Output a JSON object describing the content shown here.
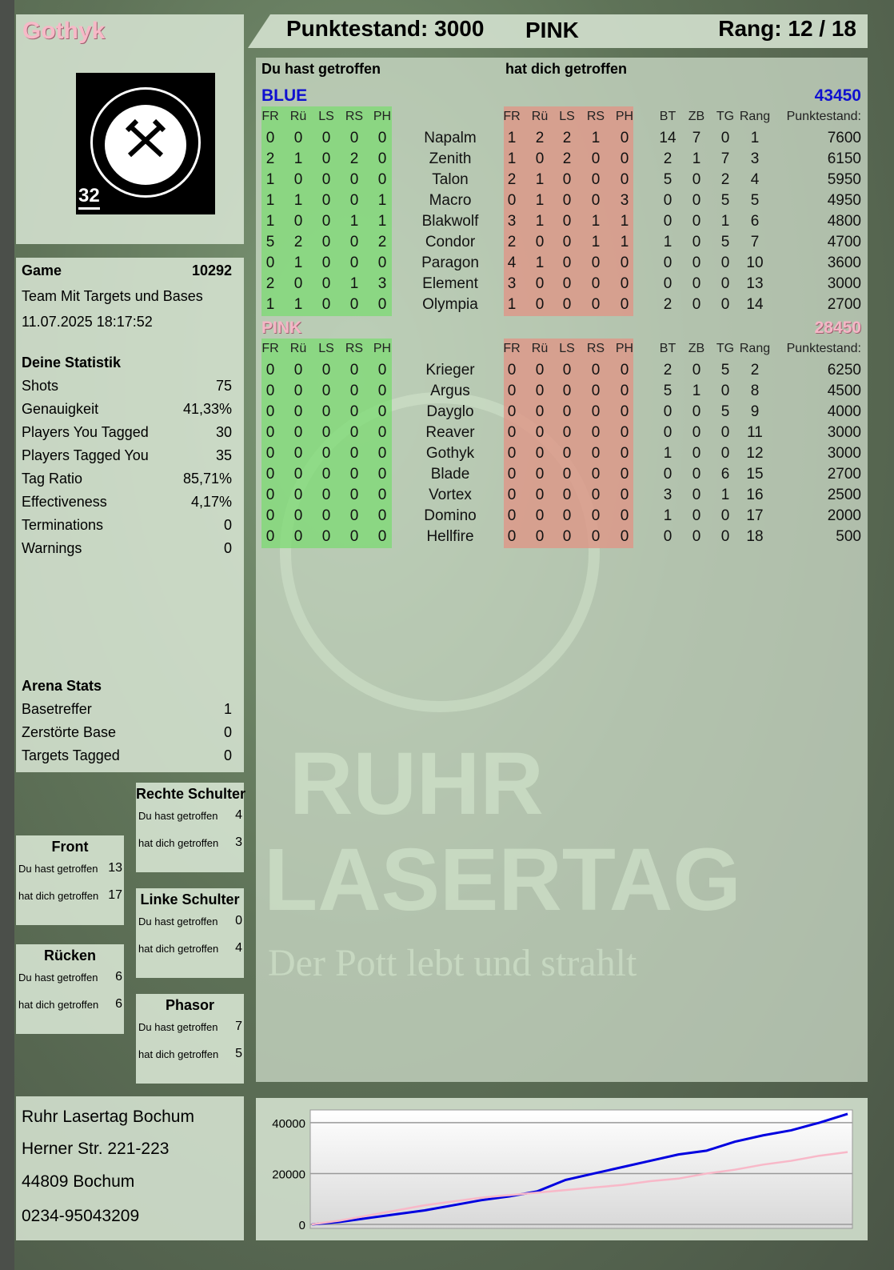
{
  "player": {
    "name": "Gothyk",
    "logo_text": "RUHR LASERTAG",
    "logo_number": "32"
  },
  "header": {
    "score": "Punktestand: 3000",
    "team": "PINK",
    "rank": "Rang: 12 / 18"
  },
  "watermark": {
    "line1": "RUHR",
    "line2": "LASERTAG",
    "slogan": "Der Pott lebt und strahlt"
  },
  "game": {
    "label": "Game",
    "number": "10292",
    "mode": "Team Mit Targets und Bases",
    "datetime": "11.07.2025 18:17:52"
  },
  "stats": {
    "title": "Deine Statistik",
    "items": [
      {
        "label": "Shots",
        "value": "75"
      },
      {
        "label": "Genauigkeit",
        "value": "41,33%"
      },
      {
        "label": "Players You Tagged",
        "value": "30"
      },
      {
        "label": "Players Tagged You",
        "value": "35"
      },
      {
        "label": "Tag Ratio",
        "value": "85,71%"
      },
      {
        "label": "Effectiveness",
        "value": "4,17%"
      },
      {
        "label": "Terminations",
        "value": "0"
      },
      {
        "label": "Warnings",
        "value": "0"
      }
    ]
  },
  "arena": {
    "title": "Arena Stats",
    "items": [
      {
        "label": "Basetreffer",
        "value": "1"
      },
      {
        "label": "Zerstörte Base",
        "value": "0"
      },
      {
        "label": "Targets Tagged",
        "value": "0"
      }
    ]
  },
  "hits": [
    {
      "title": "Rechte Schulter",
      "you_label": "Du hast getroffen",
      "you": "4",
      "them_label": "hat dich getroffen",
      "them": "3"
    },
    {
      "title": "Front",
      "you_label": "Du hast getroffen",
      "you": "13",
      "them_label": "hat dich getroffen",
      "them": "17"
    },
    {
      "title": "Linke Schulter",
      "you_label": "Du hast getroffen",
      "you": "0",
      "them_label": "hat dich getroffen",
      "them": "4"
    },
    {
      "title": "Rücken",
      "you_label": "Du hast getroffen",
      "you": "6",
      "them_label": "hat dich getroffen",
      "them": "6"
    },
    {
      "title": "Phasor",
      "you_label": "Du hast getroffen",
      "you": "7",
      "them_label": "hat dich getroffen",
      "them": "5"
    }
  ],
  "table": {
    "you_hit": "Du hast getroffen",
    "hit_you": "hat dich getroffen",
    "hit_columns": [
      "FR",
      "Rü",
      "LS",
      "RS",
      "PH"
    ],
    "stat_columns": [
      "BT",
      "ZB",
      "TG",
      "Rang",
      "Punktestand:"
    ],
    "teams": [
      {
        "name": "BLUE",
        "total": "43450",
        "color": "#1010d0",
        "players": [
          {
            "name": "Napalm",
            "you": [
              0,
              0,
              0,
              0,
              0
            ],
            "them": [
              1,
              2,
              2,
              1,
              0
            ],
            "stats": [
              14,
              7,
              0,
              1,
              7600
            ]
          },
          {
            "name": "Zenith",
            "you": [
              2,
              1,
              0,
              2,
              0
            ],
            "them": [
              1,
              0,
              2,
              0,
              0
            ],
            "stats": [
              2,
              1,
              7,
              3,
              6150
            ]
          },
          {
            "name": "Talon",
            "you": [
              1,
              0,
              0,
              0,
              0
            ],
            "them": [
              2,
              1,
              0,
              0,
              0
            ],
            "stats": [
              5,
              0,
              2,
              4,
              5950
            ]
          },
          {
            "name": "Macro",
            "you": [
              1,
              1,
              0,
              0,
              1
            ],
            "them": [
              0,
              1,
              0,
              0,
              3
            ],
            "stats": [
              0,
              0,
              5,
              5,
              4950
            ]
          },
          {
            "name": "Blakwolf",
            "you": [
              1,
              0,
              0,
              1,
              1
            ],
            "them": [
              3,
              1,
              0,
              1,
              1
            ],
            "stats": [
              0,
              0,
              1,
              6,
              4800
            ]
          },
          {
            "name": "Condor",
            "you": [
              5,
              2,
              0,
              0,
              2
            ],
            "them": [
              2,
              0,
              0,
              1,
              1
            ],
            "stats": [
              1,
              0,
              5,
              7,
              4700
            ]
          },
          {
            "name": "Paragon",
            "you": [
              0,
              1,
              0,
              0,
              0
            ],
            "them": [
              4,
              1,
              0,
              0,
              0
            ],
            "stats": [
              0,
              0,
              0,
              10,
              3600
            ]
          },
          {
            "name": "Element",
            "you": [
              2,
              0,
              0,
              1,
              3
            ],
            "them": [
              3,
              0,
              0,
              0,
              0
            ],
            "stats": [
              0,
              0,
              0,
              13,
              3000
            ]
          },
          {
            "name": "Olympia",
            "you": [
              1,
              1,
              0,
              0,
              0
            ],
            "them": [
              1,
              0,
              0,
              0,
              0
            ],
            "stats": [
              2,
              0,
              0,
              14,
              2700
            ]
          }
        ]
      },
      {
        "name": "PINK",
        "total": "28450",
        "color": "#f4b6c6",
        "players": [
          {
            "name": "Krieger",
            "you": [
              0,
              0,
              0,
              0,
              0
            ],
            "them": [
              0,
              0,
              0,
              0,
              0
            ],
            "stats": [
              2,
              0,
              5,
              2,
              6250
            ]
          },
          {
            "name": "Argus",
            "you": [
              0,
              0,
              0,
              0,
              0
            ],
            "them": [
              0,
              0,
              0,
              0,
              0
            ],
            "stats": [
              5,
              1,
              0,
              8,
              4500
            ]
          },
          {
            "name": "Dayglo",
            "you": [
              0,
              0,
              0,
              0,
              0
            ],
            "them": [
              0,
              0,
              0,
              0,
              0
            ],
            "stats": [
              0,
              0,
              5,
              9,
              4000
            ]
          },
          {
            "name": "Reaver",
            "you": [
              0,
              0,
              0,
              0,
              0
            ],
            "them": [
              0,
              0,
              0,
              0,
              0
            ],
            "stats": [
              0,
              0,
              0,
              11,
              3000
            ]
          },
          {
            "name": "Gothyk",
            "you": [
              0,
              0,
              0,
              0,
              0
            ],
            "them": [
              0,
              0,
              0,
              0,
              0
            ],
            "stats": [
              1,
              0,
              0,
              12,
              3000
            ]
          },
          {
            "name": "Blade",
            "you": [
              0,
              0,
              0,
              0,
              0
            ],
            "them": [
              0,
              0,
              0,
              0,
              0
            ],
            "stats": [
              0,
              0,
              6,
              15,
              2700
            ]
          },
          {
            "name": "Vortex",
            "you": [
              0,
              0,
              0,
              0,
              0
            ],
            "them": [
              0,
              0,
              0,
              0,
              0
            ],
            "stats": [
              3,
              0,
              1,
              16,
              2500
            ]
          },
          {
            "name": "Domino",
            "you": [
              0,
              0,
              0,
              0,
              0
            ],
            "them": [
              0,
              0,
              0,
              0,
              0
            ],
            "stats": [
              1,
              0,
              0,
              17,
              2000
            ]
          },
          {
            "name": "Hellfire",
            "you": [
              0,
              0,
              0,
              0,
              0
            ],
            "them": [
              0,
              0,
              0,
              0,
              0
            ],
            "stats": [
              0,
              0,
              0,
              18,
              500
            ]
          }
        ]
      }
    ]
  },
  "address": {
    "line1": "Ruhr Lasertag Bochum",
    "line2": "Herner Str. 221-223",
    "line3": "44809 Bochum",
    "phone": "0234-95043209"
  },
  "chart_data": {
    "type": "line",
    "title": "",
    "xlabel": "",
    "ylabel": "",
    "ylim": [
      0,
      45000
    ],
    "yticks": [
      0,
      20000,
      40000
    ],
    "grid": "horizontal",
    "x": [
      0,
      1,
      2,
      3,
      4,
      5,
      6,
      7,
      8,
      9,
      10,
      11,
      12,
      13,
      14,
      15,
      16,
      17,
      18,
      19
    ],
    "series": [
      {
        "color": "#0000e0",
        "values": [
          0,
          1000,
          2500,
          4000,
          5500,
          7500,
          9500,
          11000,
          13000,
          17500,
          20000,
          22500,
          25000,
          27500,
          29000,
          32500,
          35000,
          37000,
          40000,
          43450
        ]
      },
      {
        "color": "#f8b8c8",
        "values": [
          0,
          1500,
          3500,
          5500,
          7500,
          9000,
          10500,
          11500,
          12500,
          13500,
          14500,
          15500,
          17000,
          18000,
          20000,
          21500,
          23500,
          25000,
          27000,
          28450
        ]
      }
    ]
  }
}
